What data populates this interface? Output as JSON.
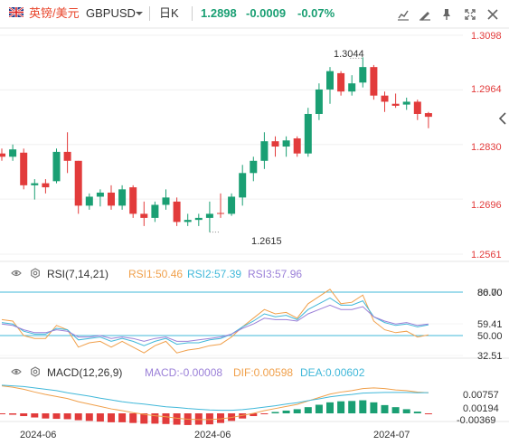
{
  "header": {
    "symbol_name": "英镑/美元",
    "symbol_code": "GBPUSD",
    "period": "日K",
    "price": "1.2898",
    "change": "-0.0009",
    "change_pct": "-0.07%"
  },
  "toolbar_icons": [
    "edit-indicator-icon",
    "drawing-tools-icon",
    "pin-icon",
    "fullscreen-icon",
    "close-icon"
  ],
  "colors": {
    "up": "#1a9f73",
    "down": "#e23b3b",
    "rsi1": "#f0a04b",
    "rsi2": "#41b8d9",
    "rsi3": "#9b80d8",
    "macd": "#9b80d8",
    "dif": "#f0a04b",
    "dea": "#41b8d9"
  },
  "price_axis": [
    "1.3098",
    "1.2964",
    "1.2830",
    "1.2696",
    "1.2561"
  ],
  "annotations": {
    "high": "1.3044",
    "low": "1.2615"
  },
  "rsi": {
    "label": "RSI(7,14,21)",
    "rsi1": "RSI1:50.46",
    "rsi2": "RSI2:57.39",
    "rsi3": "RSI3:57.96",
    "axis": [
      "80.00",
      "59.41",
      "50.00",
      "32.51"
    ],
    "axis_overlay": "86.70"
  },
  "macd": {
    "label": "MACD(12,26,9)",
    "macd": "MACD:-0.00008",
    "dif": "DIF:0.00598",
    "dea": "DEA:0.00602",
    "axis": [
      "0.00757",
      "0.00194",
      "-0.00369"
    ]
  },
  "x_axis": [
    "2024-06",
    "2024-06",
    "2024-07"
  ],
  "chart_data": {
    "type": "candlestick",
    "x_ticks": [
      "2024-06",
      "2024-06",
      "2024-07"
    ],
    "y_ticks": [
      1.3098,
      1.2964,
      1.283,
      1.2696,
      1.2561
    ],
    "ylim": [
      1.2561,
      1.3098
    ],
    "candles": [
      {
        "o": 1.2808,
        "h": 1.282,
        "l": 1.279,
        "c": 1.28
      },
      {
        "o": 1.28,
        "h": 1.283,
        "l": 1.279,
        "c": 1.2818
      },
      {
        "o": 1.281,
        "h": 1.282,
        "l": 1.272,
        "c": 1.273
      },
      {
        "o": 1.273,
        "h": 1.2745,
        "l": 1.2695,
        "c": 1.2735
      },
      {
        "o": 1.2735,
        "h": 1.2745,
        "l": 1.271,
        "c": 1.2725
      },
      {
        "o": 1.274,
        "h": 1.282,
        "l": 1.2735,
        "c": 1.2812
      },
      {
        "o": 1.2812,
        "h": 1.286,
        "l": 1.276,
        "c": 1.279
      },
      {
        "o": 1.279,
        "h": 1.279,
        "l": 1.266,
        "c": 1.268
      },
      {
        "o": 1.268,
        "h": 1.271,
        "l": 1.267,
        "c": 1.2702
      },
      {
        "o": 1.2702,
        "h": 1.272,
        "l": 1.2678,
        "c": 1.2712
      },
      {
        "o": 1.2712,
        "h": 1.273,
        "l": 1.267,
        "c": 1.268
      },
      {
        "o": 1.268,
        "h": 1.273,
        "l": 1.267,
        "c": 1.272
      },
      {
        "o": 1.2725,
        "h": 1.273,
        "l": 1.265,
        "c": 1.266
      },
      {
        "o": 1.266,
        "h": 1.269,
        "l": 1.263,
        "c": 1.265
      },
      {
        "o": 1.265,
        "h": 1.269,
        "l": 1.264,
        "c": 1.2682
      },
      {
        "o": 1.2682,
        "h": 1.272,
        "l": 1.267,
        "c": 1.27
      },
      {
        "o": 1.269,
        "h": 1.27,
        "l": 1.263,
        "c": 1.264
      },
      {
        "o": 1.264,
        "h": 1.266,
        "l": 1.263,
        "c": 1.2645
      },
      {
        "o": 1.2645,
        "h": 1.266,
        "l": 1.263,
        "c": 1.265
      },
      {
        "o": 1.265,
        "h": 1.269,
        "l": 1.2615,
        "c": 1.266
      },
      {
        "o": 1.2662,
        "h": 1.271,
        "l": 1.265,
        "c": 1.266
      },
      {
        "o": 1.266,
        "h": 1.271,
        "l": 1.2655,
        "c": 1.2702
      },
      {
        "o": 1.27,
        "h": 1.278,
        "l": 1.268,
        "c": 1.276
      },
      {
        "o": 1.276,
        "h": 1.28,
        "l": 1.274,
        "c": 1.279
      },
      {
        "o": 1.279,
        "h": 1.286,
        "l": 1.277,
        "c": 1.2838
      },
      {
        "o": 1.2838,
        "h": 1.285,
        "l": 1.28,
        "c": 1.2825
      },
      {
        "o": 1.2825,
        "h": 1.285,
        "l": 1.28,
        "c": 1.284
      },
      {
        "o": 1.2845,
        "h": 1.285,
        "l": 1.28,
        "c": 1.2808
      },
      {
        "o": 1.2808,
        "h": 1.292,
        "l": 1.28,
        "c": 1.2905
      },
      {
        "o": 1.2905,
        "h": 1.298,
        "l": 1.289,
        "c": 1.2965
      },
      {
        "o": 1.2965,
        "h": 1.302,
        "l": 1.293,
        "c": 1.301
      },
      {
        "o": 1.3005,
        "h": 1.301,
        "l": 1.295,
        "c": 1.296
      },
      {
        "o": 1.296,
        "h": 1.3,
        "l": 1.295,
        "c": 1.298
      },
      {
        "o": 1.2982,
        "h": 1.3044,
        "l": 1.297,
        "c": 1.302
      },
      {
        "o": 1.302,
        "h": 1.3025,
        "l": 1.294,
        "c": 1.295
      },
      {
        "o": 1.295,
        "h": 1.296,
        "l": 1.291,
        "c": 1.2935
      },
      {
        "o": 1.293,
        "h": 1.2955,
        "l": 1.292,
        "c": 1.2925
      },
      {
        "o": 1.2928,
        "h": 1.2945,
        "l": 1.2915,
        "c": 1.2935
      },
      {
        "o": 1.2935,
        "h": 1.294,
        "l": 1.289,
        "c": 1.2905
      },
      {
        "o": 1.2907,
        "h": 1.291,
        "l": 1.287,
        "c": 1.2898
      }
    ],
    "rsi_series": [
      {
        "name": "RSI1",
        "values": [
          61,
          60,
          50,
          48,
          48,
          57,
          54,
          42,
          45,
          46,
          42,
          46,
          42,
          38,
          43,
          46,
          38,
          40,
          41,
          43,
          44,
          49,
          56,
          62,
          68,
          65,
          66,
          62,
          72,
          77,
          82,
          72,
          73,
          78,
          60,
          54,
          52,
          53,
          49,
          50.46
        ]
      },
      {
        "name": "RSI2",
        "values": [
          59,
          58,
          53,
          51,
          51,
          55,
          54,
          47,
          48,
          49,
          46,
          48,
          46,
          43,
          46,
          48,
          44,
          45,
          45,
          47,
          48,
          51,
          56,
          60,
          65,
          63,
          64,
          61,
          68,
          72,
          76,
          71,
          71,
          74,
          63,
          59,
          57,
          58,
          56,
          57.39
        ]
      },
      {
        "name": "RSI3",
        "values": [
          58,
          57,
          54,
          52,
          52,
          54,
          53,
          49,
          49,
          50,
          48,
          49,
          48,
          46,
          48,
          49,
          46,
          46,
          47,
          48,
          49,
          51,
          55,
          58,
          62,
          61,
          61,
          60,
          65,
          68,
          71,
          68,
          68,
          70,
          63,
          60,
          58,
          59,
          57,
          57.96
        ]
      }
    ],
    "macd_series": [
      {
        "name": "MACD",
        "values": [
          -0.0002,
          -0.0004,
          -0.0008,
          -0.0012,
          -0.0015,
          -0.0016,
          -0.0017,
          -0.002,
          -0.0022,
          -0.0024,
          -0.0026,
          -0.0026,
          -0.0028,
          -0.003,
          -0.003,
          -0.0031,
          -0.0033,
          -0.0034,
          -0.0033,
          -0.0032,
          -0.0028,
          -0.0022,
          -0.0015,
          -0.0008,
          -0.0001,
          0.0004,
          0.0008,
          0.0012,
          0.0018,
          0.0025,
          0.0032,
          0.0035,
          0.0036,
          0.0038,
          0.0032,
          0.0024,
          0.0018,
          0.0012,
          0.0005,
          -8e-05
        ]
      },
      {
        "name": "DIF",
        "values": [
          0.008,
          0.0076,
          0.007,
          0.0062,
          0.0055,
          0.0049,
          0.0043,
          0.0034,
          0.0027,
          0.002,
          0.0013,
          0.0008,
          0.0002,
          -0.0003,
          -0.0007,
          -0.001,
          -0.0014,
          -0.0017,
          -0.0018,
          -0.0018,
          -0.0016,
          -0.0012,
          -0.0006,
          0.0,
          0.0008,
          0.0014,
          0.002,
          0.0026,
          0.0036,
          0.0046,
          0.0056,
          0.0062,
          0.0066,
          0.0072,
          0.0074,
          0.0072,
          0.0068,
          0.0066,
          0.0062,
          0.00598
        ]
      },
      {
        "name": "DEA",
        "values": [
          0.0082,
          0.008,
          0.0078,
          0.0074,
          0.007,
          0.0066,
          0.006,
          0.0055,
          0.005,
          0.0044,
          0.0039,
          0.0034,
          0.003,
          0.0027,
          0.0023,
          0.0019,
          0.0017,
          0.0014,
          0.0012,
          0.001,
          0.0009,
          0.0009,
          0.0011,
          0.0014,
          0.0018,
          0.0022,
          0.0027,
          0.0031,
          0.0037,
          0.0042,
          0.0048,
          0.0052,
          0.0055,
          0.0059,
          0.006,
          0.0061,
          0.0061,
          0.0061,
          0.006,
          0.00602
        ]
      }
    ]
  }
}
